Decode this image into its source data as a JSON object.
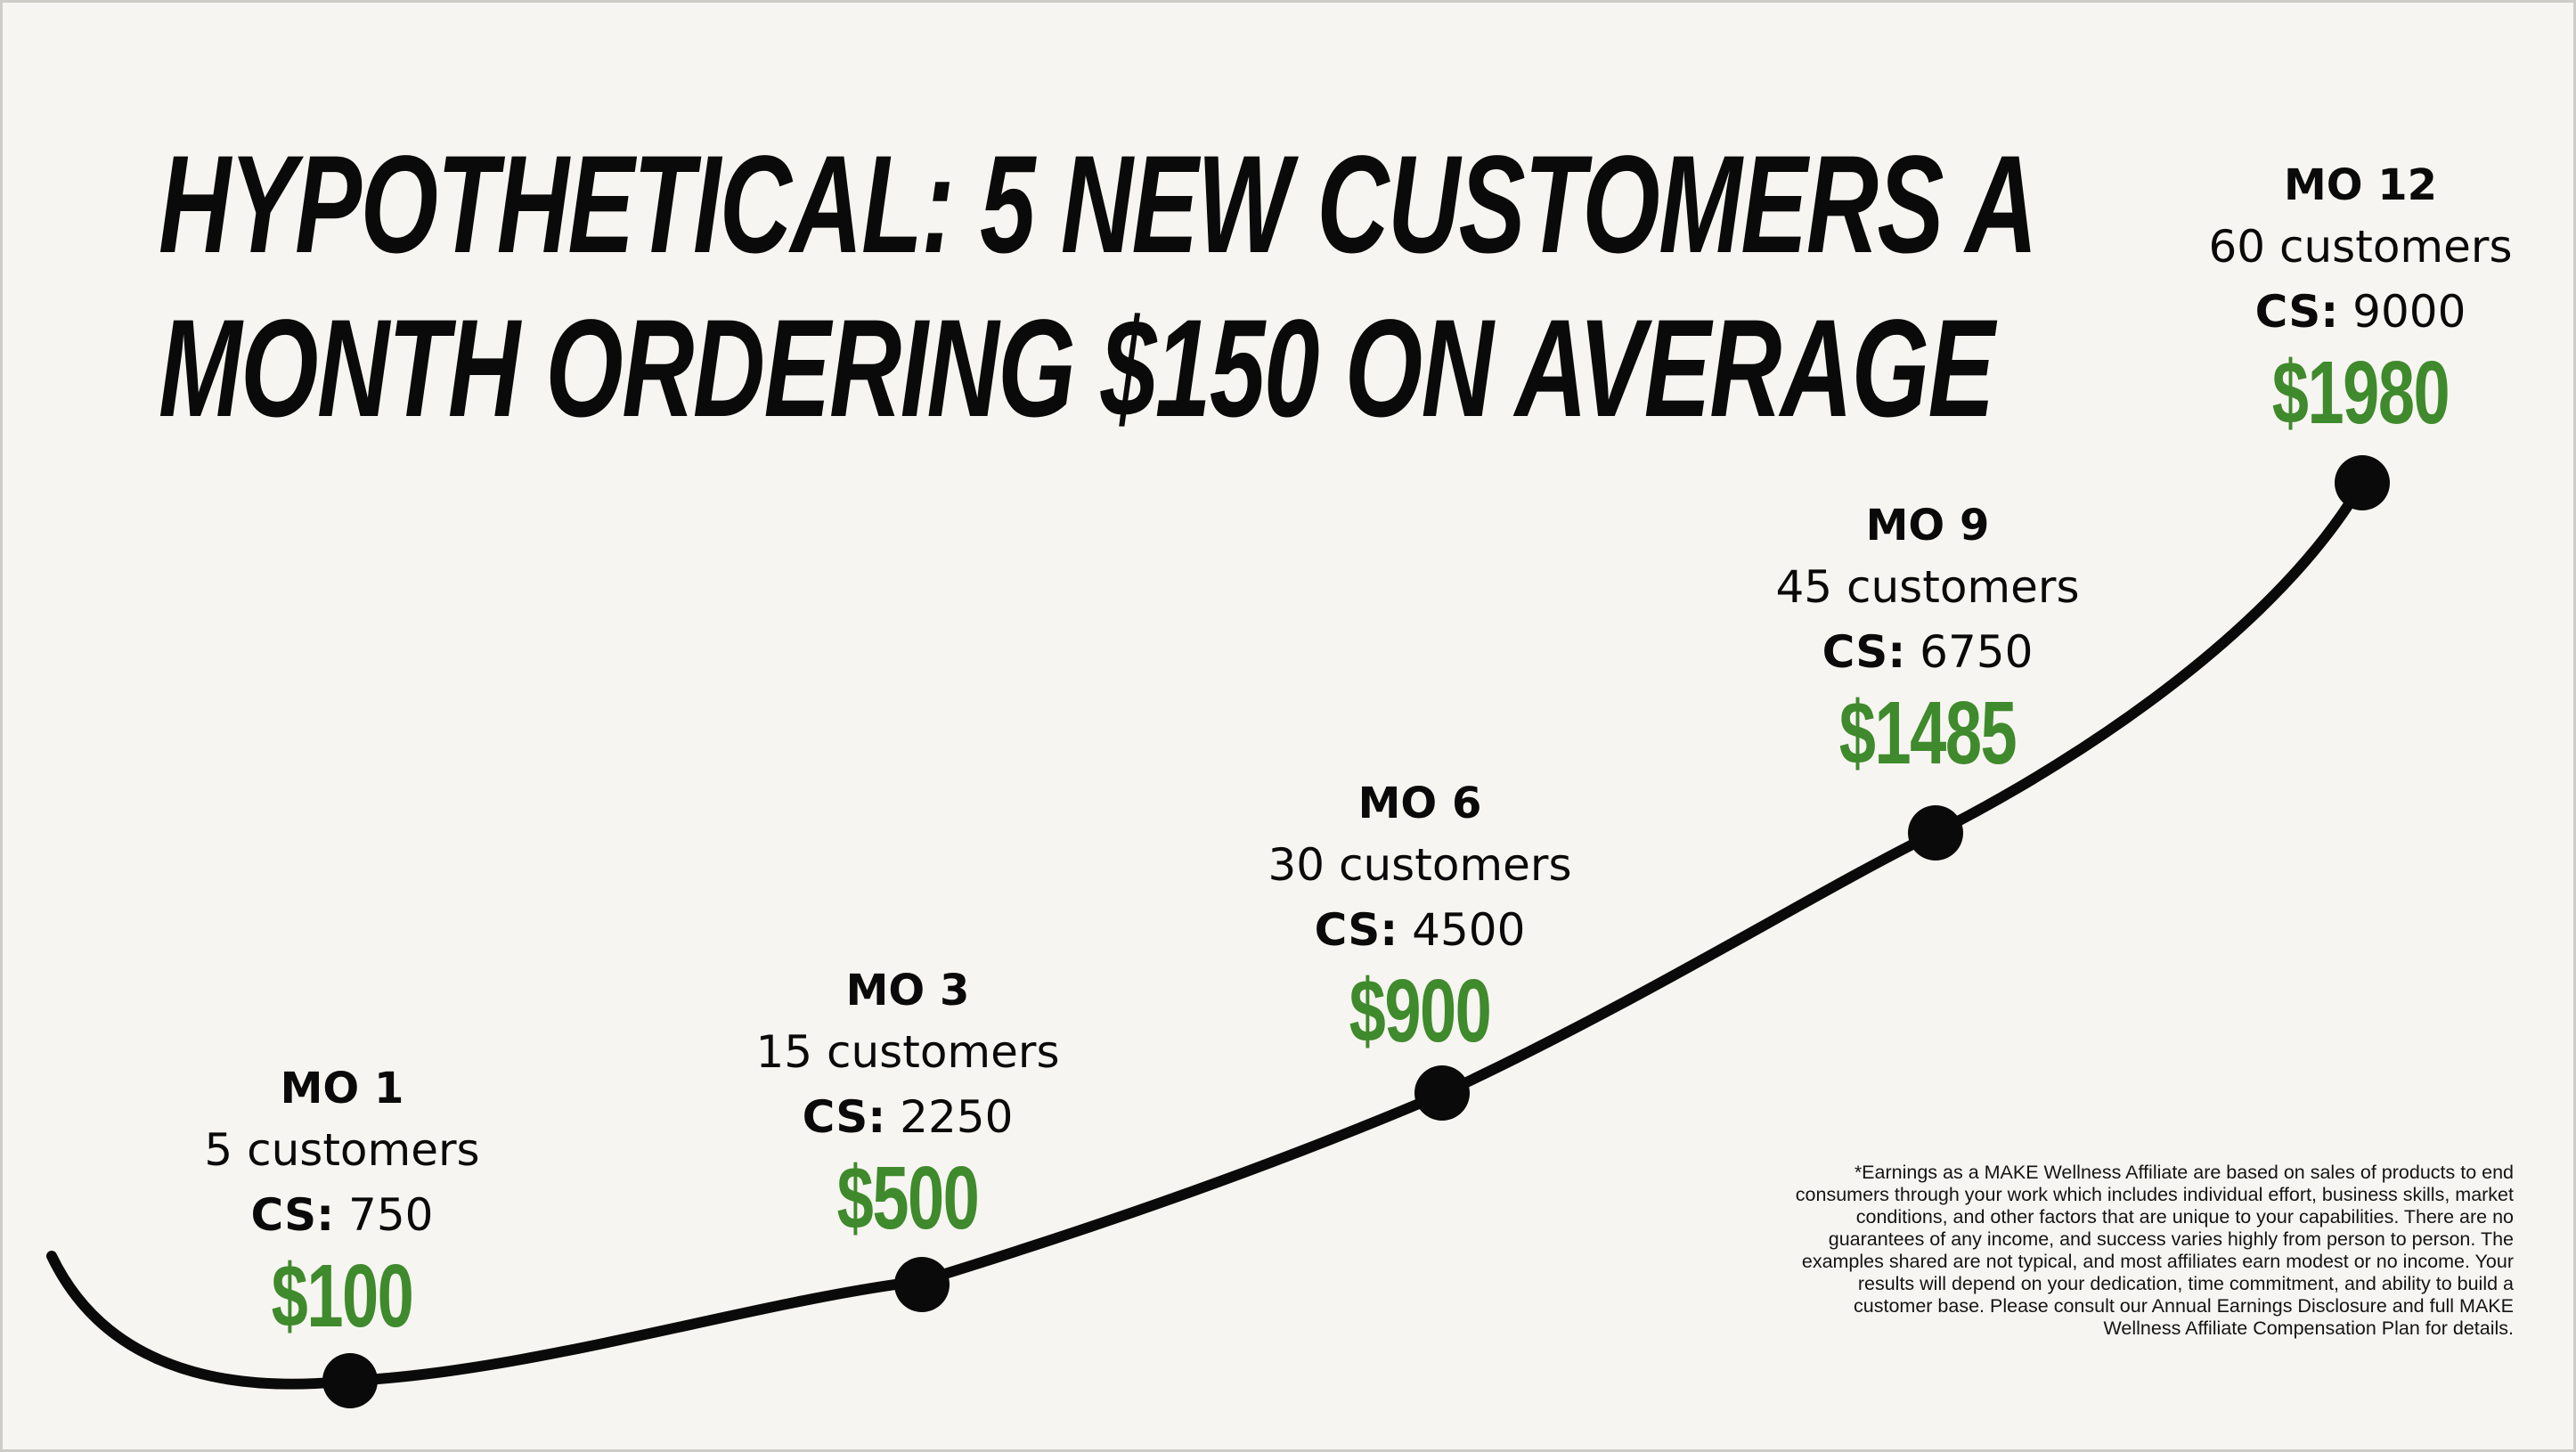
{
  "title": {
    "line1": "HYPOTHETICAL: 5 NEW CUSTOMERS A",
    "line2": "MONTH ORDERING $150 ON AVERAGE"
  },
  "cs_label": "CS:",
  "milestones": [
    {
      "month": "MO 1",
      "customers": "5 customers",
      "cs": "750",
      "earnings": "$100"
    },
    {
      "month": "MO 3",
      "customers": "15 customers",
      "cs": "2250",
      "earnings": "$500"
    },
    {
      "month": "MO 6",
      "customers": "30 customers",
      "cs": "4500",
      "earnings": "$900"
    },
    {
      "month": "MO 9",
      "customers": "45 customers",
      "cs": "6750",
      "earnings": "$1485"
    },
    {
      "month": "MO 12",
      "customers": "60 customers",
      "cs": "9000",
      "earnings": "$1980"
    }
  ],
  "colors": {
    "background": "#f7f5f1",
    "text": "#0a0a0a",
    "earnings": "#3f8a2c",
    "curve": "#0a0a0a"
  },
  "disclaimer": "*Earnings as a MAKE Wellness Affiliate are based on sales of products to end consumers through your work which includes individual effort, business skills, market conditions, and other factors that are unique to your capabilities. There are no guarantees of any income, and success varies highly from person to person. The examples shared are not typical, and most affiliates earn modest or no income. Your results will depend on your dedication, time commitment, and ability to build a customer base. Please consult our Annual Earnings Disclosure and full MAKE Wellness Affiliate Compensation Plan for details."
}
